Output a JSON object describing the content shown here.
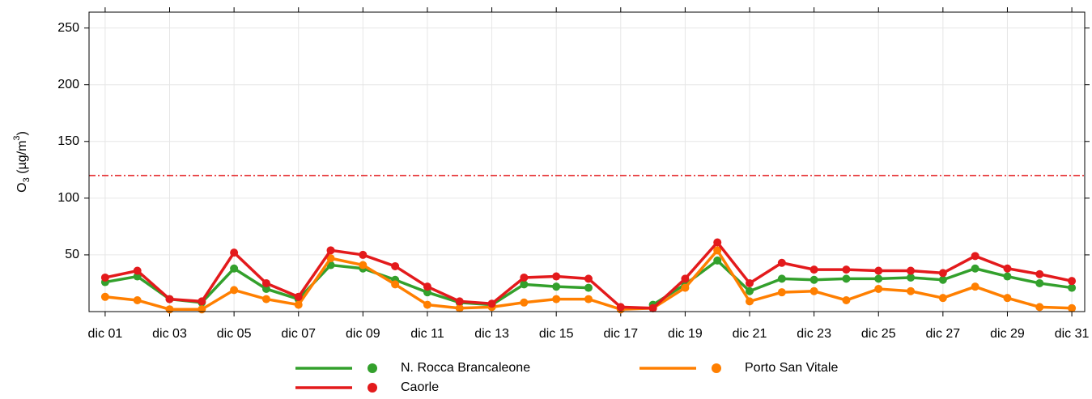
{
  "chart_data": {
    "type": "line",
    "ylabel": [
      "O",
      "3",
      " (µg/m",
      "3",
      ")"
    ],
    "x": [
      1,
      2,
      3,
      4,
      5,
      6,
      7,
      8,
      9,
      10,
      11,
      12,
      13,
      14,
      15,
      16,
      17,
      18,
      19,
      20,
      21,
      22,
      23,
      24,
      25,
      26,
      27,
      28,
      29,
      30,
      31
    ],
    "xlim": [
      0.5,
      31.4
    ],
    "xticks": [
      {
        "value": 1,
        "label": "dic 01"
      },
      {
        "value": 3,
        "label": "dic 03"
      },
      {
        "value": 5,
        "label": "dic 05"
      },
      {
        "value": 7,
        "label": "dic 07"
      },
      {
        "value": 9,
        "label": "dic 09"
      },
      {
        "value": 11,
        "label": "dic 11"
      },
      {
        "value": 13,
        "label": "dic 13"
      },
      {
        "value": 15,
        "label": "dic 15"
      },
      {
        "value": 17,
        "label": "dic 17"
      },
      {
        "value": 19,
        "label": "dic 19"
      },
      {
        "value": 21,
        "label": "dic 21"
      },
      {
        "value": 23,
        "label": "dic 23"
      },
      {
        "value": 25,
        "label": "dic 25"
      },
      {
        "value": 27,
        "label": "dic 27"
      },
      {
        "value": 29,
        "label": "dic 29"
      },
      {
        "value": 31,
        "label": "dic 31"
      }
    ],
    "ylim": [
      0,
      264
    ],
    "yticks": [
      50,
      100,
      150,
      200,
      250
    ],
    "grid": true,
    "reference_line": {
      "value": 120,
      "color": "#e31a1c"
    },
    "series": [
      {
        "name": "N. Rocca Brancaleone",
        "color": "#33a02c",
        "values": [
          26,
          31,
          11,
          8,
          38,
          20,
          11,
          41,
          38,
          28,
          17,
          8,
          6,
          24,
          22,
          21,
          null,
          6,
          24,
          45,
          18,
          29,
          28,
          29,
          29,
          30,
          28,
          38,
          31,
          25,
          21
        ]
      },
      {
        "name": "Porto San Vitale",
        "color": "#ff7f00",
        "values": [
          13,
          10,
          2,
          2,
          19,
          11,
          6,
          47,
          41,
          24,
          6,
          3,
          4,
          8,
          11,
          11,
          2,
          3,
          21,
          54,
          9,
          17,
          18,
          10,
          20,
          18,
          12,
          22,
          12,
          4,
          3
        ]
      },
      {
        "name": "Caorle",
        "color": "#e31a1c",
        "values": [
          30,
          36,
          11,
          9,
          52,
          25,
          13,
          54,
          50,
          40,
          22,
          9,
          7,
          30,
          31,
          29,
          4,
          3,
          29,
          61,
          25,
          43,
          37,
          37,
          36,
          36,
          34,
          49,
          38,
          33,
          27
        ]
      }
    ]
  }
}
